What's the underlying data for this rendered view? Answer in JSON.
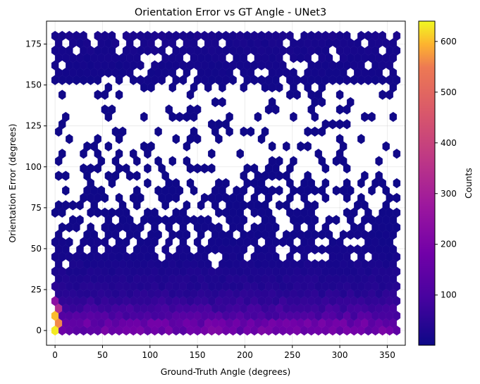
{
  "chart_data": {
    "type": "hexbin",
    "title": "Orientation Error vs GT Angle - UNet3",
    "xlabel": "Ground-Truth Angle (degrees)",
    "ylabel": "Orientation Error (degrees)",
    "xlim": [
      -9,
      369
    ],
    "ylim": [
      -9,
      189
    ],
    "xticks": [
      0,
      50,
      100,
      150,
      200,
      250,
      300,
      350
    ],
    "yticks": [
      0,
      25,
      50,
      75,
      100,
      125,
      150,
      175
    ],
    "grid": true,
    "colormap": "plasma",
    "colorbar": {
      "label": "Counts",
      "range": [
        1,
        640
      ],
      "ticks": [
        100,
        200,
        300,
        400,
        500,
        600
      ]
    },
    "bins": {
      "x_spacing": 7.5,
      "y_spacing": 4.5,
      "x_range": [
        0,
        360
      ],
      "y_range": [
        0,
        180
      ],
      "density_profile": [
        {
          "error": 0,
          "count": 170
        },
        {
          "error": 4.5,
          "count": 160
        },
        {
          "error": 9,
          "count": 110
        },
        {
          "error": 13.5,
          "count": 85
        },
        {
          "error": 18,
          "count": 60
        },
        {
          "error": 22.5,
          "count": 45
        },
        {
          "error": 27,
          "count": 35
        },
        {
          "error": 36,
          "count": 25
        },
        {
          "error": 45,
          "count": 15
        },
        {
          "error": 60,
          "count": 8
        },
        {
          "error": 90,
          "count": 4
        },
        {
          "error": 120,
          "count": 5
        },
        {
          "error": 150,
          "count": 8
        },
        {
          "error": 165,
          "count": 14
        },
        {
          "error": 180,
          "count": 20
        }
      ],
      "hotspots": [
        {
          "x": 0,
          "y": 0,
          "count": 630
        },
        {
          "x": 0,
          "y": 9,
          "count": 600
        },
        {
          "x": 3.75,
          "y": 4.5,
          "count": 560
        },
        {
          "x": 3.75,
          "y": 13.5,
          "count": 330
        },
        {
          "x": 0,
          "y": 18,
          "count": 240
        },
        {
          "x": 150,
          "y": 4.5,
          "count": 280
        },
        {
          "x": 180,
          "y": 4.5,
          "count": 270
        },
        {
          "x": 165,
          "y": 4.5,
          "count": 250
        },
        {
          "x": 337.5,
          "y": 4.5,
          "count": 290
        },
        {
          "x": 330,
          "y": 4.5,
          "count": 260
        },
        {
          "x": 345,
          "y": 4.5,
          "count": 240
        },
        {
          "x": 30,
          "y": 4.5,
          "count": 230
        },
        {
          "x": 60,
          "y": 4.5,
          "count": 220
        }
      ]
    }
  }
}
